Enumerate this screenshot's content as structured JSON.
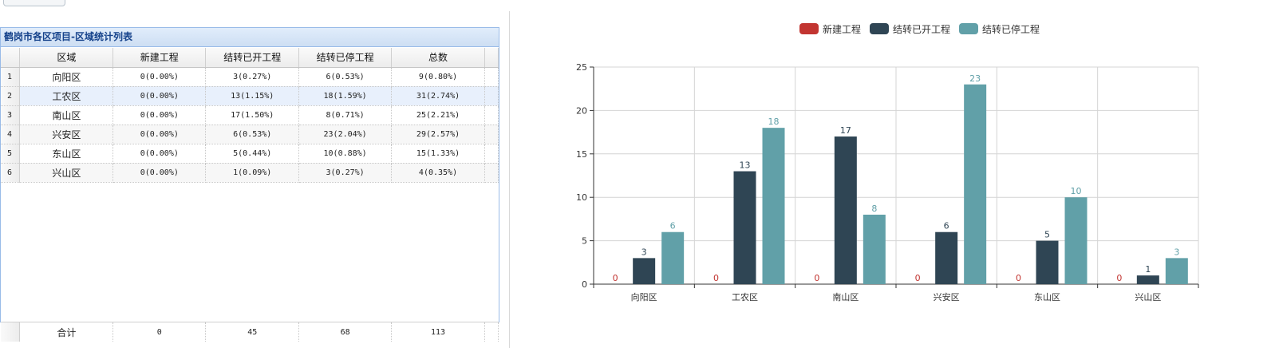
{
  "panel": {
    "title": "鹤岗市各区项目-区域统计列表",
    "columns": [
      "区域",
      "新建工程",
      "结转已开工程",
      "结转已停工程",
      "总数"
    ],
    "rows": [
      {
        "no": "1",
        "region": "向阳区",
        "new": "0(0.00%)",
        "open": "3(0.27%)",
        "stopped": "6(0.53%)",
        "total": "9(0.80%)"
      },
      {
        "no": "2",
        "region": "工农区",
        "new": "0(0.00%)",
        "open": "13(1.15%)",
        "stopped": "18(1.59%)",
        "total": "31(2.74%)"
      },
      {
        "no": "3",
        "region": "南山区",
        "new": "0(0.00%)",
        "open": "17(1.50%)",
        "stopped": "8(0.71%)",
        "total": "25(2.21%)"
      },
      {
        "no": "4",
        "region": "兴安区",
        "new": "0(0.00%)",
        "open": "6(0.53%)",
        "stopped": "23(2.04%)",
        "total": "29(2.57%)"
      },
      {
        "no": "5",
        "region": "东山区",
        "new": "0(0.00%)",
        "open": "5(0.44%)",
        "stopped": "10(0.88%)",
        "total": "15(1.33%)"
      },
      {
        "no": "6",
        "region": "兴山区",
        "new": "0(0.00%)",
        "open": "1(0.09%)",
        "stopped": "3(0.27%)",
        "total": "4(0.35%)"
      }
    ],
    "summary": {
      "label": "合计",
      "new": "0",
      "open": "45",
      "stopped": "68",
      "total": "113"
    }
  },
  "chart_data": {
    "type": "bar",
    "categories": [
      "向阳区",
      "工农区",
      "南山区",
      "兴安区",
      "东山区",
      "兴山区"
    ],
    "series": [
      {
        "name": "新建工程",
        "color": "#c23531",
        "values": [
          0,
          0,
          0,
          0,
          0,
          0
        ]
      },
      {
        "name": "结转已开工程",
        "color": "#2f4554",
        "values": [
          3,
          13,
          17,
          6,
          5,
          1
        ]
      },
      {
        "name": "结转已停工程",
        "color": "#61a0a8",
        "values": [
          6,
          18,
          8,
          23,
          10,
          3
        ]
      }
    ],
    "ylim": [
      0,
      25
    ],
    "yticks": [
      0,
      5,
      10,
      15,
      20,
      25
    ],
    "grid": true,
    "legend_position": "top-center",
    "data_labels": true
  }
}
